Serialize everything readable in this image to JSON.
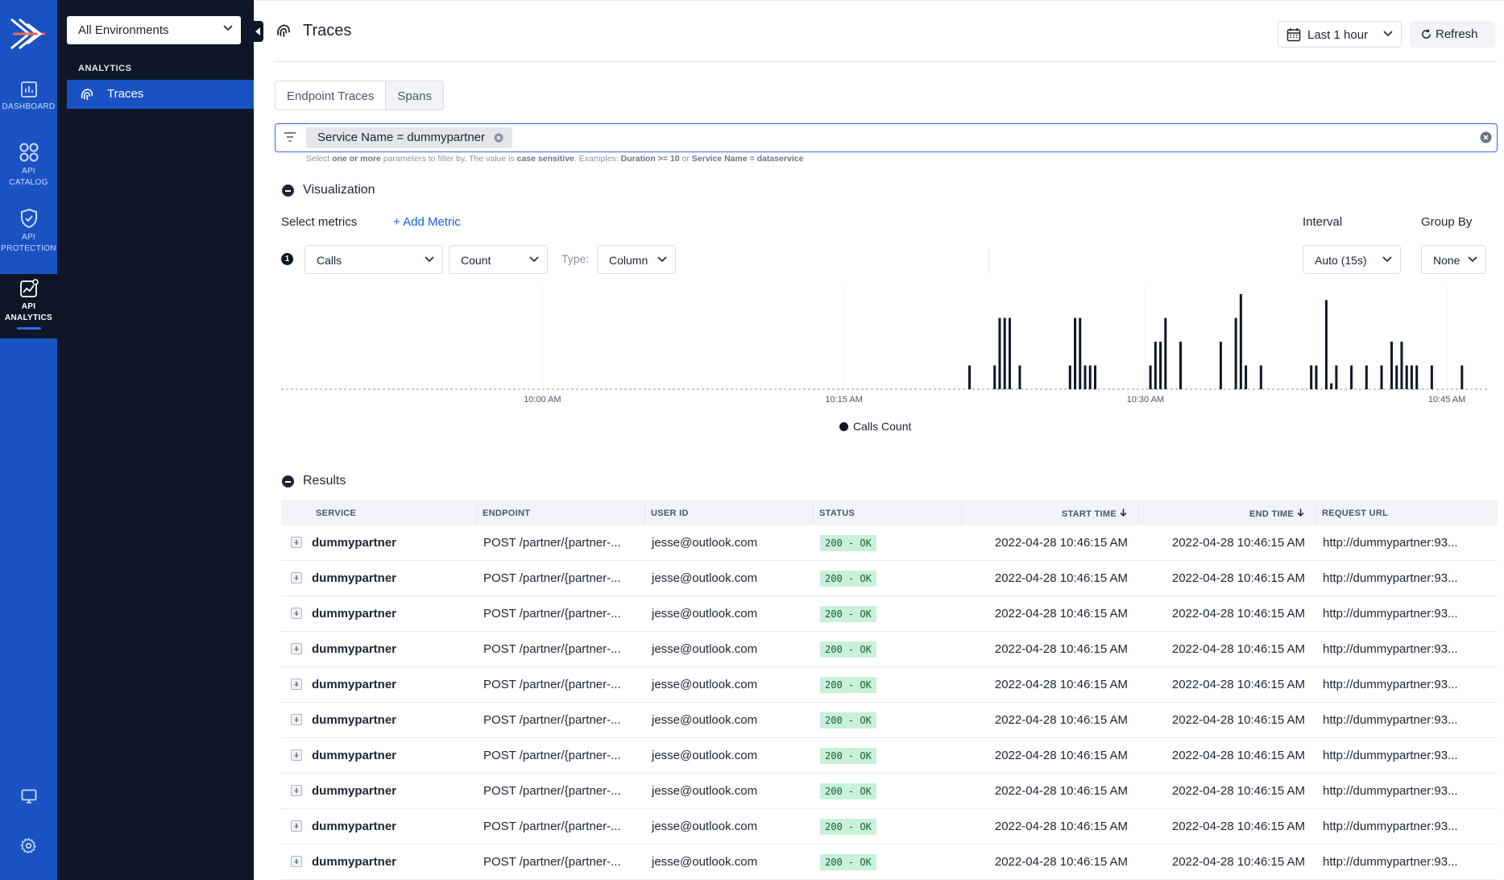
{
  "rail": {
    "items": [
      {
        "label": "DASHBOARD",
        "icon": "chart-box-icon"
      },
      {
        "label_lines": [
          "API",
          "CATALOG"
        ],
        "icon": "grid-circles-icon"
      },
      {
        "label_lines": [
          "API",
          "PROTECTION"
        ],
        "icon": "shield-check-icon"
      },
      {
        "label_lines": [
          "API",
          "ANALYTICS"
        ],
        "icon": "analytics-icon",
        "active": true
      }
    ],
    "bottom": [
      {
        "icon": "monitor-icon"
      },
      {
        "icon": "gear-icon"
      }
    ]
  },
  "sidebar": {
    "environment": "All Environments",
    "section": "ANALYTICS",
    "items": [
      {
        "label": "Traces",
        "icon": "fingerprint-icon",
        "active": true
      }
    ]
  },
  "header": {
    "title": "Traces",
    "time_range": "Last 1 hour",
    "refresh": "Refresh"
  },
  "tabs": [
    {
      "label": "Endpoint Traces",
      "active": true
    },
    {
      "label": "Spans",
      "active": false
    }
  ],
  "filter": {
    "chip": "Service Name = dummypartner",
    "help": {
      "p1": "Select ",
      "b1": "one or more",
      "p2": " parameters to filter by. The value is ",
      "b2": "case sensitive",
      "p3": ". Examples: ",
      "b3": "Duration >= 10",
      "p4": " or ",
      "b4": "Service Name = dataservice"
    }
  },
  "visualization": {
    "title": "Visualization",
    "select_metrics": "Select metrics",
    "add_metric": "+ Add Metric",
    "metric_index": "1",
    "metric": "Calls",
    "aggregation": "Count",
    "type_label": "Type:",
    "type": "Column",
    "interval_label": "Interval",
    "interval": "Auto (15s)",
    "group_by_label": "Group By",
    "group_by": "None"
  },
  "chart_data": {
    "type": "bar",
    "series": [
      {
        "name": "Calls Count",
        "color": "#0e1727"
      }
    ],
    "x_ticks": [
      "10:00 AM",
      "10:15 AM",
      "10:30 AM",
      "10:45 AM"
    ],
    "x_range_minutes": [
      "9:47",
      "10:47"
    ],
    "bars": [
      {
        "t": 34.25,
        "v": 4
      },
      {
        "t": 35.5,
        "v": 4
      },
      {
        "t": 35.75,
        "v": 12
      },
      {
        "t": 36.0,
        "v": 12
      },
      {
        "t": 36.25,
        "v": 12
      },
      {
        "t": 36.75,
        "v": 4
      },
      {
        "t": 39.25,
        "v": 4
      },
      {
        "t": 39.5,
        "v": 12
      },
      {
        "t": 39.75,
        "v": 12
      },
      {
        "t": 40.0,
        "v": 4
      },
      {
        "t": 40.25,
        "v": 4
      },
      {
        "t": 40.5,
        "v": 4
      },
      {
        "t": 43.25,
        "v": 4
      },
      {
        "t": 43.5,
        "v": 8
      },
      {
        "t": 43.75,
        "v": 8
      },
      {
        "t": 44.0,
        "v": 12
      },
      {
        "t": 44.75,
        "v": 8
      },
      {
        "t": 46.75,
        "v": 8
      },
      {
        "t": 47.5,
        "v": 12
      },
      {
        "t": 47.75,
        "v": 16
      },
      {
        "t": 48.0,
        "v": 4
      },
      {
        "t": 48.75,
        "v": 4
      },
      {
        "t": 51.25,
        "v": 4
      },
      {
        "t": 51.5,
        "v": 4
      },
      {
        "t": 52.0,
        "v": 15
      },
      {
        "t": 52.25,
        "v": 1
      },
      {
        "t": 52.5,
        "v": 4
      },
      {
        "t": 53.25,
        "v": 4
      },
      {
        "t": 54.0,
        "v": 4
      },
      {
        "t": 54.75,
        "v": 4
      },
      {
        "t": 55.25,
        "v": 8
      },
      {
        "t": 55.5,
        "v": 4
      },
      {
        "t": 55.75,
        "v": 8
      },
      {
        "t": 56.0,
        "v": 4
      },
      {
        "t": 56.25,
        "v": 4
      },
      {
        "t": 56.5,
        "v": 4
      },
      {
        "t": 57.25,
        "v": 4
      },
      {
        "t": 58.75,
        "v": 4
      }
    ],
    "ymax": 16,
    "grid": true,
    "legend": "bottom-center"
  },
  "results": {
    "title": "Results",
    "columns": [
      "SERVICE",
      "ENDPOINT",
      "USER ID",
      "STATUS",
      "START TIME",
      "END TIME",
      "REQUEST URL"
    ],
    "rows": [
      {
        "service": "dummypartner",
        "endpoint": "POST /partner/{partner-...",
        "user": "jesse@outlook.com",
        "status": "200 - OK",
        "start": "2022-04-28 10:46:15 AM",
        "end": "2022-04-28 10:46:15 AM",
        "url": "http://dummypartner:93..."
      },
      {
        "service": "dummypartner",
        "endpoint": "POST /partner/{partner-...",
        "user": "jesse@outlook.com",
        "status": "200 - OK",
        "start": "2022-04-28 10:46:15 AM",
        "end": "2022-04-28 10:46:15 AM",
        "url": "http://dummypartner:93..."
      },
      {
        "service": "dummypartner",
        "endpoint": "POST /partner/{partner-...",
        "user": "jesse@outlook.com",
        "status": "200 - OK",
        "start": "2022-04-28 10:46:15 AM",
        "end": "2022-04-28 10:46:15 AM",
        "url": "http://dummypartner:93..."
      },
      {
        "service": "dummypartner",
        "endpoint": "POST /partner/{partner-...",
        "user": "jesse@outlook.com",
        "status": "200 - OK",
        "start": "2022-04-28 10:46:15 AM",
        "end": "2022-04-28 10:46:15 AM",
        "url": "http://dummypartner:93..."
      },
      {
        "service": "dummypartner",
        "endpoint": "POST /partner/{partner-...",
        "user": "jesse@outlook.com",
        "status": "200 - OK",
        "start": "2022-04-28 10:46:15 AM",
        "end": "2022-04-28 10:46:15 AM",
        "url": "http://dummypartner:93..."
      },
      {
        "service": "dummypartner",
        "endpoint": "POST /partner/{partner-...",
        "user": "jesse@outlook.com",
        "status": "200 - OK",
        "start": "2022-04-28 10:46:15 AM",
        "end": "2022-04-28 10:46:15 AM",
        "url": "http://dummypartner:93..."
      },
      {
        "service": "dummypartner",
        "endpoint": "POST /partner/{partner-...",
        "user": "jesse@outlook.com",
        "status": "200 - OK",
        "start": "2022-04-28 10:46:15 AM",
        "end": "2022-04-28 10:46:15 AM",
        "url": "http://dummypartner:93..."
      },
      {
        "service": "dummypartner",
        "endpoint": "POST /partner/{partner-...",
        "user": "jesse@outlook.com",
        "status": "200 - OK",
        "start": "2022-04-28 10:46:15 AM",
        "end": "2022-04-28 10:46:15 AM",
        "url": "http://dummypartner:93..."
      },
      {
        "service": "dummypartner",
        "endpoint": "POST /partner/{partner-...",
        "user": "jesse@outlook.com",
        "status": "200 - OK",
        "start": "2022-04-28 10:46:15 AM",
        "end": "2022-04-28 10:46:15 AM",
        "url": "http://dummypartner:93..."
      },
      {
        "service": "dummypartner",
        "endpoint": "POST /partner/{partner-...",
        "user": "jesse@outlook.com",
        "status": "200 - OK",
        "start": "2022-04-28 10:46:15 AM",
        "end": "2022-04-28 10:46:15 AM",
        "url": "http://dummypartner:93..."
      }
    ]
  },
  "colors": {
    "accent": "#1a52c4",
    "sidebar_bg": "#0e1727",
    "status_ok_bg": "#c9f0d8"
  }
}
